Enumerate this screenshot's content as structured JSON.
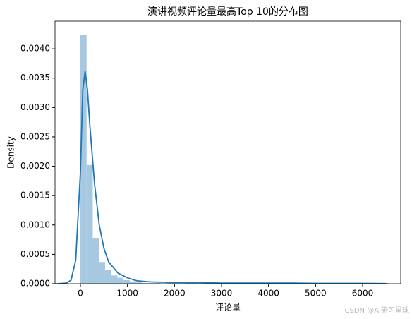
{
  "chart_data": {
    "type": "histogram",
    "title": "演讲视频评论量最高Top 10的分布图",
    "x_label": "评论量",
    "y_label": "Density",
    "bins": [
      0,
      131,
      262,
      393,
      524,
      655,
      786,
      917,
      1048,
      1179,
      1310,
      1441,
      1572,
      1703,
      1834,
      1965,
      2096,
      2227,
      2358,
      2489,
      2620,
      2751,
      2882,
      3013,
      3144,
      3275,
      3406,
      3537,
      3668,
      3799,
      3930,
      4061,
      4192,
      4323,
      4454,
      4585,
      4716,
      4847,
      4978,
      5109,
      5240,
      5371,
      5502,
      5633,
      5764,
      5895,
      6026,
      6157,
      6288,
      6419,
      6550
    ],
    "values": [
      0.00423,
      0.00202,
      0.00078,
      0.00037,
      0.00023,
      0.00014,
      0.0001,
      6e-05,
      4e-05,
      2e-05,
      1e-05,
      1e-05,
      1e-05,
      0,
      1e-05,
      0,
      0,
      1e-05,
      1e-05,
      0,
      0,
      0,
      0,
      0,
      0,
      1e-05,
      0,
      0,
      0,
      0,
      0,
      0,
      0,
      0,
      0,
      0,
      0,
      0,
      0,
      1e-05,
      0,
      0,
      0,
      0,
      0,
      0,
      0,
      0,
      0,
      1e-05
    ],
    "color": "#a6c8e1",
    "kde": {
      "color": "#1f77b4",
      "x": [
        -500,
        -300,
        -200,
        -100,
        0,
        50,
        100,
        150,
        200,
        300,
        400,
        500,
        600,
        800,
        1000,
        1200,
        1500,
        2000,
        2500,
        3000,
        3500,
        4000,
        4500,
        5000,
        5500,
        6000,
        6500
      ],
      "values": [
        0,
        1e-05,
        6e-05,
        0.0004,
        0.0019,
        0.0033,
        0.00362,
        0.0033,
        0.0027,
        0.0017,
        0.001,
        0.0006,
        0.00037,
        0.00018,
        0.0001,
        5e-05,
        3e-05,
        2e-05,
        2e-05,
        1e-05,
        1e-05,
        1e-05,
        1e-05,
        5e-06,
        5e-06,
        5e-06,
        2e-06
      ]
    },
    "xlim": [
      -540,
      6810
    ],
    "xticks": [
      0,
      1000,
      2000,
      3000,
      4000,
      5000,
      6000
    ],
    "ylim": [
      0,
      0.00447
    ],
    "yticks": [
      {
        "value": 0,
        "label": "0.0000"
      },
      {
        "value": 0.0005,
        "label": "0.0005"
      },
      {
        "value": 0.001,
        "label": "0.0010"
      },
      {
        "value": 0.0015,
        "label": "0.0015"
      },
      {
        "value": 0.002,
        "label": "0.0020"
      },
      {
        "value": 0.0025,
        "label": "0.0025"
      },
      {
        "value": 0.003,
        "label": "0.0030"
      },
      {
        "value": 0.0035,
        "label": "0.0035"
      },
      {
        "value": 0.004,
        "label": "0.0040"
      }
    ],
    "watermark": "CSDN @AI研习星球"
  }
}
